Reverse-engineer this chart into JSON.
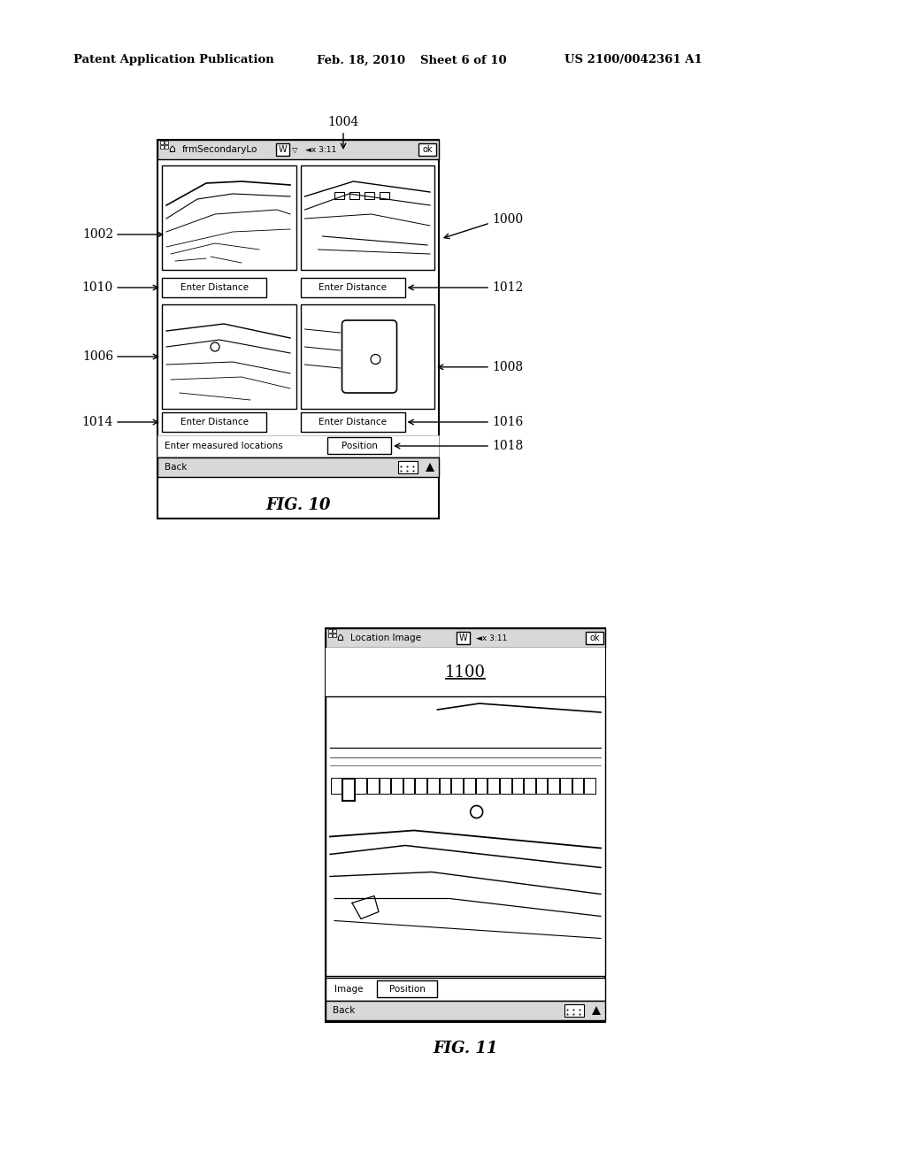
{
  "bg_color": "#ffffff",
  "header_text": "Patent Application Publication",
  "header_date": "Feb. 18, 2010",
  "header_sheet": "Sheet 6 of 10",
  "header_patent": "US 2100/0042361 A1",
  "fig10_label": "FIG. 10",
  "fig11_label": "FIG. 11",
  "fig10_title_arrow": "1004",
  "fig10_device_label": "1000",
  "fig10_label_1002": "1002",
  "fig10_label_1006": "1006",
  "fig10_label_1008": "1008",
  "fig10_label_1010": "1010",
  "fig10_label_1012": "1012",
  "fig10_label_1014": "1014",
  "fig10_label_1016": "1016",
  "fig10_label_1018": "1018",
  "fig10_btn1": "Enter Distance",
  "fig10_btn2": "Enter Distance",
  "fig10_btn3": "Enter Distance",
  "fig10_btn4": "Enter Distance",
  "fig10_text_measured": "Enter measured locations",
  "fig10_btn_position": "Position",
  "fig10_titlebar": "frmSecondaryLo",
  "fig10_titlebar_w": "W",
  "fig10_titlebar_signal": "x 3:11",
  "fig10_titlebar_ok": "ok",
  "fig10_back": "Back",
  "fig11_titlebar": "Location Image",
  "fig11_titlebar_w": "W",
  "fig11_titlebar_signal": "x 3:11",
  "fig11_titlebar_ok": "ok",
  "fig11_label_1100": "1100",
  "fig11_image_label": "Image",
  "fig11_btn_position": "Position",
  "fig11_back": "Back"
}
